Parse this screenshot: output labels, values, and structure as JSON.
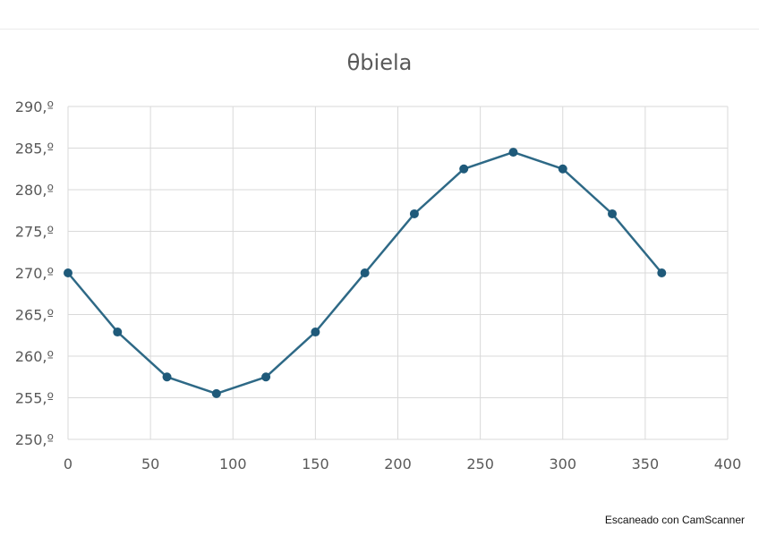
{
  "chart_data": {
    "type": "line",
    "title": "θbiela",
    "x": [
      0,
      30,
      60,
      90,
      120,
      150,
      180,
      210,
      240,
      270,
      300,
      330,
      360
    ],
    "series": [
      {
        "values": [
          270.0,
          262.9,
          257.5,
          255.5,
          257.5,
          262.9,
          270.0,
          277.1,
          282.5,
          284.5,
          282.5,
          277.1,
          270.0
        ]
      }
    ],
    "xlim": [
      0,
      400
    ],
    "ylim": [
      250,
      290
    ],
    "x_ticks": [
      "0",
      "50",
      "100",
      "150",
      "200",
      "250",
      "300",
      "350",
      "400"
    ],
    "y_ticks": [
      "250,º",
      "255,º",
      "260,º",
      "265,º",
      "270,º",
      "275,º",
      "280,º",
      "285,º",
      "290,º"
    ],
    "x_tick_values": [
      0,
      50,
      100,
      150,
      200,
      250,
      300,
      350,
      400
    ],
    "y_tick_values": [
      250,
      255,
      260,
      265,
      270,
      275,
      280,
      285,
      290
    ],
    "grid": true,
    "colors": {
      "line": "#2e6986",
      "marker": "#1f5a7a",
      "grid": "#d9d9d9",
      "text": "#595959"
    }
  },
  "watermark": "Escaneado con CamScanner"
}
